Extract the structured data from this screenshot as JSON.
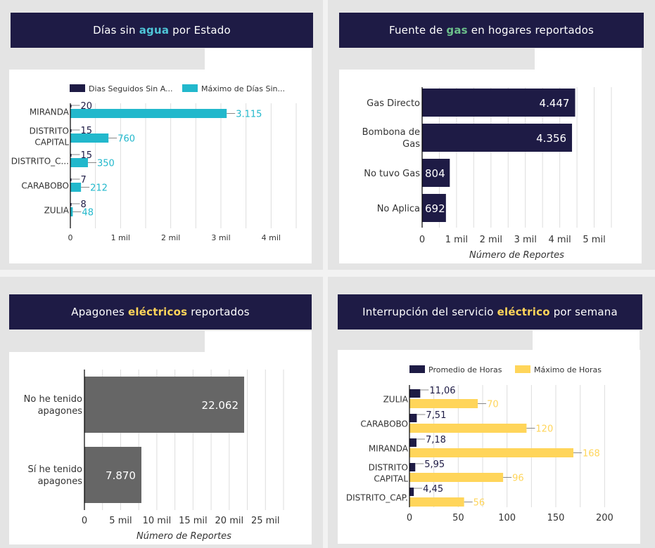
{
  "colors": {
    "navy": "#1e1b45",
    "cyan": "#22b8cc",
    "gas_green": "#6cc08b",
    "yellow": "#ffd55a",
    "gray_bar": "#666666",
    "axis_text": "#333333",
    "grid": "#dddddd"
  },
  "panels": [
    {
      "title": {
        "before": "Días sin ",
        "highlight": "agua",
        "after": " por Estado",
        "highlight_color": "#4fc6d8"
      }
    },
    {
      "title": {
        "before": "Fuente de ",
        "highlight": "gas",
        "after": " en hogares reportados",
        "highlight_color": "#6cc08b"
      }
    },
    {
      "title": {
        "before": "Apagones ",
        "highlight": "eléctricos",
        "after": " reportados",
        "highlight_color": "#ffd55a"
      }
    },
    {
      "title": {
        "before": "Interrupción del servicio ",
        "highlight": "eléctrico",
        "after": " por semana",
        "highlight_color": "#ffd55a"
      }
    }
  ],
  "chart_data": [
    {
      "type": "bar",
      "orientation": "horizontal",
      "title": "Días sin agua por Estado",
      "categories": [
        [
          "MIRANDA"
        ],
        [
          "DISTRITO",
          "CAPITAL"
        ],
        [
          "DISTRITO_C..."
        ],
        [
          "CARABOBO"
        ],
        [
          "ZULIA"
        ]
      ],
      "series": [
        {
          "name": "Dias Seguidos Sin A...",
          "color": "#1e1b45",
          "values": [
            20,
            15,
            15,
            7,
            8
          ],
          "labels": [
            "20",
            "15",
            "15",
            "7",
            "8"
          ]
        },
        {
          "name": "Máximo de Días Sin...",
          "color": "#22b8cc",
          "values": [
            3115,
            760,
            350,
            212,
            48
          ],
          "labels": [
            "3.115",
            "760",
            "350",
            "212",
            "48"
          ]
        }
      ],
      "xlim": [
        0,
        4500
      ],
      "xticks": [
        0,
        1000,
        2000,
        3000,
        4000
      ],
      "xtick_labels": [
        "0",
        "1 mil",
        "2 mil",
        "3 mil",
        "4 mil"
      ],
      "grid_step": 500,
      "xlabel": "",
      "ylabel": "",
      "legend": "top",
      "grid": true
    },
    {
      "type": "bar",
      "orientation": "horizontal",
      "title": "Fuente de gas en hogares reportados",
      "categories": [
        [
          "Gas Directo"
        ],
        [
          "Bombona de",
          "Gas"
        ],
        [
          "No tuvo Gas"
        ],
        [
          "No Aplica"
        ]
      ],
      "series": [
        {
          "name": "Número de Reportes",
          "color": "#1e1b45",
          "values": [
            4447,
            4356,
            804,
            692
          ],
          "labels": [
            "4.447",
            "4.356",
            "804",
            "692"
          ]
        }
      ],
      "xlim": [
        0,
        5500
      ],
      "xticks": [
        0,
        1000,
        2000,
        3000,
        4000,
        5000
      ],
      "xtick_labels": [
        "0",
        "1 mil",
        "2 mil",
        "3 mil",
        "4 mil",
        "5 mil"
      ],
      "grid_step": 500,
      "xlabel": "Número de Reportes",
      "ylabel": "",
      "grid": true
    },
    {
      "type": "bar",
      "orientation": "horizontal",
      "title": "Apagones eléctricos reportados",
      "categories": [
        [
          "No he tenido",
          "apagones"
        ],
        [
          "Sí he tenido",
          "apagones"
        ]
      ],
      "series": [
        {
          "name": "Número de Reportes",
          "color": "#666666",
          "values": [
            22062,
            7870
          ],
          "labels": [
            "22.062",
            "7.870"
          ]
        }
      ],
      "xlim": [
        0,
        27500
      ],
      "xticks": [
        0,
        5000,
        10000,
        15000,
        20000,
        25000
      ],
      "xtick_labels": [
        "0",
        "5 mil",
        "10 mil",
        "15 mil",
        "20 mil",
        "25 mil"
      ],
      "grid_step": 2500,
      "xlabel": "Número de Reportes",
      "ylabel": "",
      "grid": true
    },
    {
      "type": "bar",
      "orientation": "horizontal",
      "title": "Interrupción del servicio eléctrico por semana",
      "categories": [
        [
          "ZULIA"
        ],
        [
          "CARABOBO"
        ],
        [
          "MIRANDA"
        ],
        [
          "DISTRITO",
          "CAPITAL"
        ],
        [
          "DISTRITO_CAP."
        ]
      ],
      "series": [
        {
          "name": "Promedio de Horas",
          "color": "#1e1b45",
          "values": [
            11.06,
            7.51,
            7.18,
            5.95,
            4.45
          ],
          "labels": [
            "11,06",
            "7,51",
            "7,18",
            "5,95",
            "4,45"
          ]
        },
        {
          "name": "Máximo de Horas",
          "color": "#ffd55a",
          "values": [
            70,
            120,
            168,
            96,
            56
          ],
          "labels": [
            "70",
            "120",
            "168",
            "96",
            "56"
          ]
        }
      ],
      "xlim": [
        0,
        212
      ],
      "xticks": [
        0,
        50,
        100,
        150,
        200
      ],
      "xtick_labels": [
        "0",
        "50",
        "100",
        "150",
        "200"
      ],
      "grid_step": 25,
      "xlabel": "",
      "ylabel": "",
      "legend": "top",
      "grid": true
    }
  ]
}
